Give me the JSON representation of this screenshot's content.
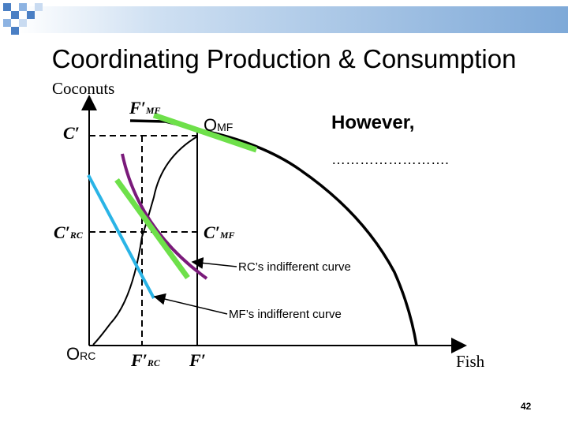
{
  "slide": {
    "title": "Coordinating Production & Consumption",
    "page_number": "42"
  },
  "axes": {
    "y_label": "Coconuts",
    "x_label": "Fish",
    "origin_rc": {
      "letter": "O",
      "sub": "RC"
    },
    "origin_mf": {
      "letter": "O",
      "sub": "MF"
    }
  },
  "ticks": {
    "f_mf": {
      "base": "F′",
      "sub": "MF"
    },
    "c_prime": {
      "base": "C′"
    },
    "c_rc": {
      "base": "C′",
      "sub": "RC"
    },
    "c_mf": {
      "base": "C′",
      "sub": "MF"
    },
    "f_rc": {
      "base": "F′",
      "sub": "RC"
    },
    "f_prime": {
      "base": "F′"
    }
  },
  "annotations": {
    "however": "However,",
    "dots": "…………………….",
    "rc_curve": "RC’s indifferent curve",
    "mf_curve": "MF’s indifferent curve"
  },
  "colors": {
    "green": "#6ee04a",
    "purple": "#7a1a7a",
    "cyan": "#2ab4e6",
    "black": "#000000",
    "deco_blue": "#4a7fc4"
  }
}
